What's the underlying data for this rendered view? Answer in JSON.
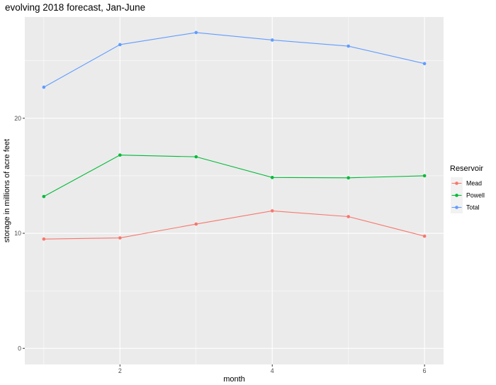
{
  "chart_data": {
    "type": "line",
    "title": "evolving 2018 forecast, Jan-June",
    "xlabel": "month",
    "ylabel": "storage in millions of acre feet",
    "x": [
      1,
      2,
      3,
      4,
      5,
      6
    ],
    "x_ticks": [
      2,
      4,
      6
    ],
    "y_ticks": [
      0,
      10,
      20
    ],
    "xlim": [
      0.75,
      6.25
    ],
    "ylim": [
      -1.4,
      28.8
    ],
    "grid": true,
    "legend": {
      "title": "Reservoir",
      "position": "right"
    },
    "series": [
      {
        "name": "Mead",
        "color": "#F8766D",
        "values": [
          9.5,
          9.6,
          10.8,
          11.95,
          11.45,
          9.75
        ]
      },
      {
        "name": "Powell",
        "color": "#00BA38",
        "values": [
          13.2,
          16.8,
          16.65,
          14.85,
          14.82,
          15.0
        ]
      },
      {
        "name": "Total",
        "color": "#619CFF",
        "values": [
          22.7,
          26.4,
          27.45,
          26.8,
          26.27,
          24.75
        ]
      }
    ]
  }
}
